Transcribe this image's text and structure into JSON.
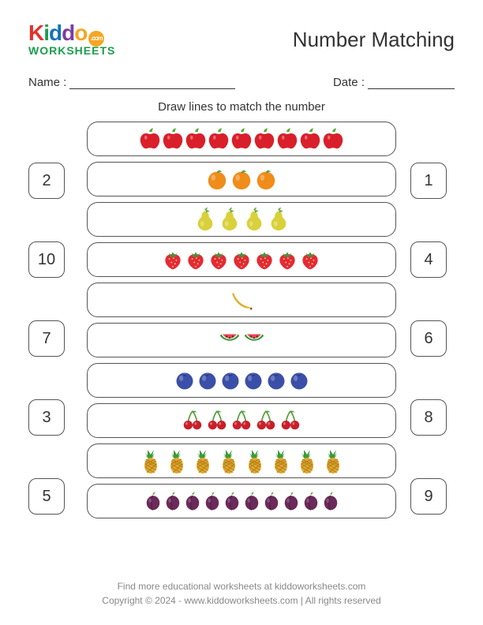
{
  "logo": {
    "top_text": "Kiddo",
    "bottom_text": "WORKSHEETS",
    "badge_text": ".com",
    "colors": {
      "k": "#e4302b",
      "i": "#1a9e4b",
      "d1": "#1173ba",
      "d2": "#7a3da0",
      "o": "#f5a623",
      "bottom": "#1a9e4b"
    }
  },
  "title": "Number Matching",
  "name_label": "Name :",
  "date_label": "Date :",
  "instruction": "Draw lines to match the number",
  "left_numbers": [
    "2",
    "10",
    "7",
    "3",
    "5"
  ],
  "right_numbers": [
    "1",
    "4",
    "6",
    "8",
    "9"
  ],
  "rows": [
    {
      "fruit": "apple",
      "count": 9
    },
    {
      "fruit": "orange",
      "count": 3
    },
    {
      "fruit": "pear",
      "count": 4
    },
    {
      "fruit": "strawberry",
      "count": 7
    },
    {
      "fruit": "banana",
      "count": 1
    },
    {
      "fruit": "watermelon",
      "count": 2
    },
    {
      "fruit": "blueberry",
      "count": 6
    },
    {
      "fruit": "cherry",
      "count": 5
    },
    {
      "fruit": "pineapple",
      "count": 8
    },
    {
      "fruit": "plum",
      "count": 10
    }
  ],
  "fruit_styles": {
    "apple": {
      "size": 28
    },
    "orange": {
      "size": 30
    },
    "pear": {
      "size": 30
    },
    "strawberry": {
      "size": 28
    },
    "banana": {
      "size": 34
    },
    "watermelon": {
      "size": 30
    },
    "blueberry": {
      "size": 28
    },
    "cherry": {
      "size": 30
    },
    "pineapple": {
      "size": 32
    },
    "plum": {
      "size": 24
    }
  },
  "footer": {
    "line1": "Find more educational worksheets at kiddoworksheets.com",
    "line2": "Copyright © 2024 - www.kiddoworksheets.com  |  All rights reserved"
  }
}
